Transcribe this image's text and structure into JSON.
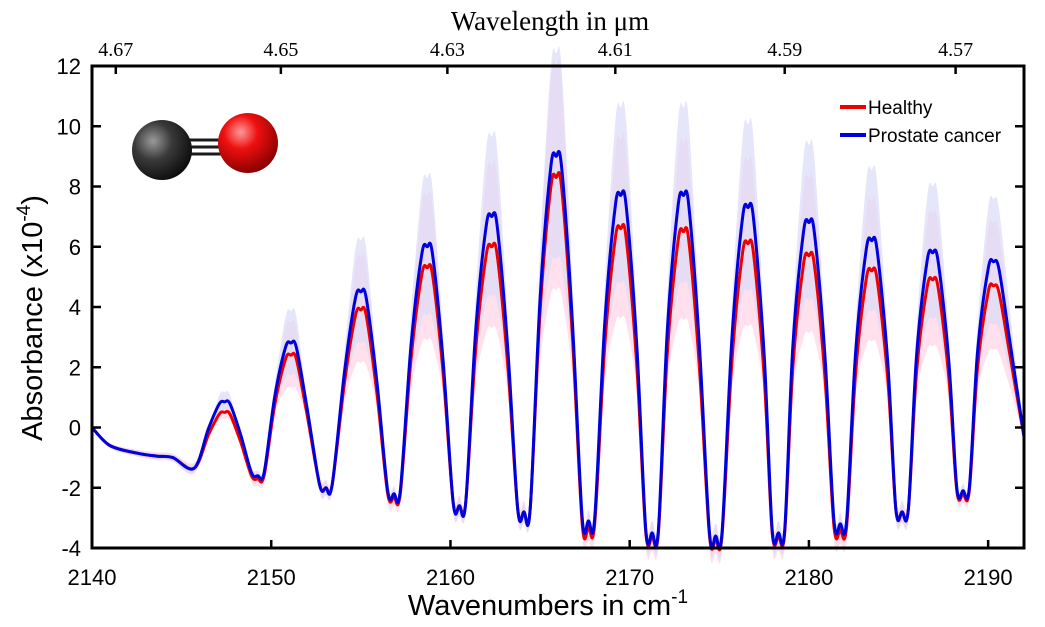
{
  "chart_data": {
    "type": "line",
    "title": "",
    "xlabel": "Wavenumbers in cm",
    "xlabel_sup": "-1",
    "ylabel": "Absorbance (x10",
    "ylabel_sup": "-4",
    "ylabel_end": ")",
    "top_axis_label": "Wavelength in  μm",
    "xlim": [
      2140,
      2192
    ],
    "ylim": [
      -4,
      12
    ],
    "x_ticks": [
      2140,
      2150,
      2160,
      2170,
      2180,
      2190
    ],
    "x_tick_labels": [
      "2140",
      "2150",
      "2160",
      "2170",
      "2180",
      "2190"
    ],
    "y_ticks": [
      -4,
      -2,
      0,
      2,
      4,
      6,
      8,
      10,
      12
    ],
    "y_tick_labels": [
      "-4",
      "-2",
      "0",
      "2",
      "4",
      "6",
      "8",
      "10",
      "12"
    ],
    "top_ticks_um": [
      4.67,
      4.65,
      4.63,
      4.61,
      4.59,
      4.57
    ],
    "top_tick_labels": [
      "4.67",
      "4.65",
      "4.63",
      "4.61",
      "4.59",
      "4.57"
    ],
    "legend_position": "top-right",
    "grid": false,
    "series": [
      {
        "name": "Healthy",
        "color": "#ee0000",
        "band_color": "#ffd6e6",
        "band_halfwidth_fraction": 0.45,
        "start_value": 0.0,
        "end_value": -0.3,
        "peaks": [
          {
            "x": 2147.4,
            "top": 0.5,
            "trough_after": -1.7
          },
          {
            "x": 2151.1,
            "top": 2.4,
            "trough_after": -2.0
          },
          {
            "x": 2155.0,
            "top": 3.9,
            "trough_after": -2.3
          },
          {
            "x": 2158.7,
            "top": 5.3,
            "trough_after": -2.6
          },
          {
            "x": 2162.3,
            "top": 6.0,
            "trough_after": -2.8
          },
          {
            "x": 2165.9,
            "top": 8.3,
            "trough_after": -3.3
          },
          {
            "x": 2169.5,
            "top": 6.6,
            "trough_after": -3.6
          },
          {
            "x": 2173.0,
            "top": 6.5,
            "trough_after": -3.7
          },
          {
            "x": 2176.6,
            "top": 6.1,
            "trough_after": -3.6
          },
          {
            "x": 2180.0,
            "top": 5.7,
            "trough_after": -3.4
          },
          {
            "x": 2183.5,
            "top": 5.2,
            "trough_after": -2.8
          },
          {
            "x": 2186.9,
            "top": 4.9,
            "trough_after": -2.2
          },
          {
            "x": 2190.3,
            "top": 4.7,
            "trough_after": -0.3
          }
        ]
      },
      {
        "name": "Prostate cancer",
        "color": "#0000dd",
        "band_color": "#dcdcf8",
        "band_halfwidth_fraction": 0.38,
        "start_value": 0.0,
        "end_value": -0.3,
        "peaks": [
          {
            "x": 2147.4,
            "top": 0.85,
            "trough_after": -1.6
          },
          {
            "x": 2151.1,
            "top": 2.8,
            "trough_after": -2.0
          },
          {
            "x": 2155.0,
            "top": 4.5,
            "trough_after": -2.2
          },
          {
            "x": 2158.7,
            "top": 6.0,
            "trough_after": -2.6
          },
          {
            "x": 2162.3,
            "top": 7.0,
            "trough_after": -2.8
          },
          {
            "x": 2165.9,
            "top": 9.0,
            "trough_after": -3.1
          },
          {
            "x": 2169.5,
            "top": 7.7,
            "trough_after": -3.5
          },
          {
            "x": 2173.0,
            "top": 7.7,
            "trough_after": -3.6
          },
          {
            "x": 2176.6,
            "top": 7.3,
            "trough_after": -3.5
          },
          {
            "x": 2180.0,
            "top": 6.8,
            "trough_after": -3.2
          },
          {
            "x": 2183.5,
            "top": 6.2,
            "trough_after": -2.8
          },
          {
            "x": 2186.9,
            "top": 5.8,
            "trough_after": -2.1
          },
          {
            "x": 2190.3,
            "top": 5.5,
            "trough_after": -0.3
          }
        ]
      }
    ],
    "molecule": {
      "name": "CO",
      "carbon_color": "#2a2a2a",
      "oxygen_color": "#e00000",
      "bond_color": "#222222"
    }
  }
}
